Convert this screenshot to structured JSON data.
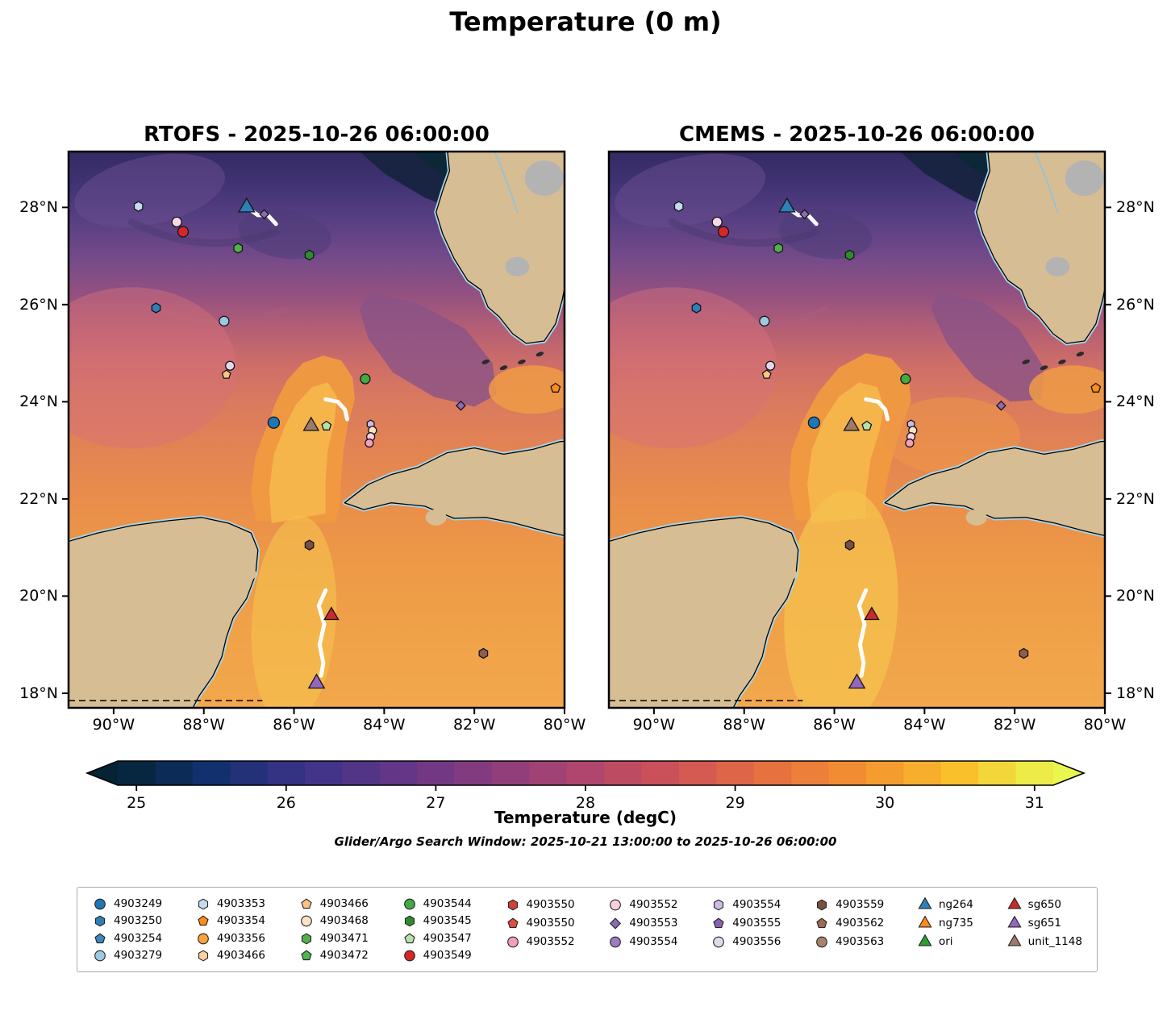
{
  "title": "Temperature (0 m)",
  "panels": [
    {
      "name": "RTOFS",
      "title": "RTOFS - 2025-10-26 06:00:00"
    },
    {
      "name": "CMEMS",
      "title": "CMEMS - 2025-10-26 06:00:00"
    }
  ],
  "axes": {
    "lon_ticks": [
      {
        "label": "90°W",
        "value": -90
      },
      {
        "label": "88°W",
        "value": -88
      },
      {
        "label": "86°W",
        "value": -86
      },
      {
        "label": "84°W",
        "value": -84
      },
      {
        "label": "82°W",
        "value": -82
      },
      {
        "label": "80°W",
        "value": -80
      }
    ],
    "lat_ticks": [
      {
        "label": "18°N",
        "value": 18
      },
      {
        "label": "20°N",
        "value": 20
      },
      {
        "label": "22°N",
        "value": 22
      },
      {
        "label": "24°N",
        "value": 24
      },
      {
        "label": "26°N",
        "value": 26
      },
      {
        "label": "28°N",
        "value": 28
      }
    ]
  },
  "colorbar": {
    "label": "Temperature (degC)",
    "ticks": [
      25,
      26,
      27,
      28,
      29,
      30,
      31
    ],
    "vmin": 24.875,
    "vmax": 31.125,
    "band_step": 0.25,
    "colormap_stops": [
      [
        0.0,
        "#042333"
      ],
      [
        0.1,
        "#12306d"
      ],
      [
        0.2,
        "#3b3389"
      ],
      [
        0.3,
        "#633688"
      ],
      [
        0.4,
        "#8b3c7e"
      ],
      [
        0.5,
        "#b0466d"
      ],
      [
        0.6,
        "#d05455"
      ],
      [
        0.7,
        "#e7713f"
      ],
      [
        0.8,
        "#f4932f"
      ],
      [
        0.9,
        "#f9c02c"
      ],
      [
        1.0,
        "#e9f64e"
      ]
    ]
  },
  "subtitle": "Glider/Argo Search Window: 2025-10-21 13:00:00 to 2025-10-26 06:00:00",
  "legend": {
    "column_sizes": [
      4,
      4,
      4,
      4,
      3,
      3,
      3,
      3,
      3,
      3
    ],
    "items": [
      {
        "label": "4903249",
        "shape": "circle",
        "color": "#1f77b4"
      },
      {
        "label": "4903250",
        "shape": "hexagon",
        "color": "#2f7fb8"
      },
      {
        "label": "4903254",
        "shape": "pentagon",
        "color": "#3d87be"
      },
      {
        "label": "4903279",
        "shape": "circle",
        "color": "#9ecae1"
      },
      {
        "label": "4903353",
        "shape": "hexagon",
        "color": "#c6dbef"
      },
      {
        "label": "4903354",
        "shape": "pentagon",
        "color": "#ff8c1a"
      },
      {
        "label": "4903356",
        "shape": "circle",
        "color": "#fda33a"
      },
      {
        "label": "4903466",
        "shape": "hexagon",
        "color": "#fdd0a2"
      },
      {
        "label": "4903466",
        "shape": "pentagon",
        "color": "#fdc486"
      },
      {
        "label": "4903468",
        "shape": "circle",
        "color": "#fde3c3"
      },
      {
        "label": "4903471",
        "shape": "hexagon",
        "color": "#54b04a"
      },
      {
        "label": "4903472",
        "shape": "pentagon",
        "color": "#4bb74c"
      },
      {
        "label": "4903544",
        "shape": "circle",
        "color": "#41ab41"
      },
      {
        "label": "4903545",
        "shape": "hexagon",
        "color": "#2e8b2e"
      },
      {
        "label": "4903547",
        "shape": "pentagon",
        "color": "#b5e2a8"
      },
      {
        "label": "4903549",
        "shape": "circle",
        "color": "#d62728"
      },
      {
        "label": "4903550",
        "shape": "hexagon",
        "color": "#d0413a"
      },
      {
        "label": "4903550",
        "shape": "pentagon",
        "color": "#e04c44"
      },
      {
        "label": "4903552",
        "shape": "circle",
        "color": "#f2a0bb"
      },
      {
        "label": "4903552",
        "shape": "circle",
        "color": "#f9d0e0"
      },
      {
        "label": "4903553",
        "shape": "diamond",
        "color": "#8c6bb1"
      },
      {
        "label": "4903554",
        "shape": "circle",
        "color": "#9e7cc1"
      },
      {
        "label": "4903554",
        "shape": "hexagon",
        "color": "#cdbbe3"
      },
      {
        "label": "4903555",
        "shape": "pentagon",
        "color": "#8860b0"
      },
      {
        "label": "4903556",
        "shape": "circle",
        "color": "#e2d9ee"
      },
      {
        "label": "4903559",
        "shape": "hexagon",
        "color": "#7a4f3f"
      },
      {
        "label": "4903562",
        "shape": "pentagon",
        "color": "#9c6b52"
      },
      {
        "label": "4903563",
        "shape": "circle",
        "color": "#a9816b"
      },
      {
        "label": "ng264",
        "shape": "triangle",
        "color": "#2f7fb8"
      },
      {
        "label": "ng735",
        "shape": "triangle",
        "color": "#ff8c1a"
      },
      {
        "label": "ori",
        "shape": "triangle",
        "color": "#2ca02c"
      },
      {
        "label": "sg650",
        "shape": "triangle",
        "color": "#c92a2a"
      },
      {
        "label": "sg651",
        "shape": "triangle",
        "color": "#9467bd"
      },
      {
        "label": "unit_1148",
        "shape": "triangle",
        "color": "#9c7b6a"
      }
    ]
  },
  "chart_data": {
    "type": "heatmap",
    "description": "Sea surface temperature (0 m) from RTOFS and CMEMS models over the Gulf of Mexico, with Argo float and glider observation positions and white glider tracks",
    "temperature_units": "degC",
    "temperature_ticks": [
      25,
      26,
      27,
      28,
      29,
      30,
      31
    ],
    "lon_range": [
      -91,
      -80
    ],
    "lat_range": [
      17.7,
      29.15
    ],
    "markers": [
      {
        "id": "4903353",
        "shape": "hexagon",
        "color": "#c6dbef",
        "lon": -89.45,
        "lat": 28.02,
        "size": 6
      },
      {
        "id": "ng264",
        "shape": "triangle",
        "color": "#2f7fb8",
        "lon": -87.05,
        "lat": 28.0,
        "size": 9
      },
      {
        "id": "4903553",
        "shape": "diamond",
        "color": "#8c6bb1",
        "lon": -86.66,
        "lat": 27.86,
        "size": 5.5
      },
      {
        "id": "4903552",
        "shape": "circle",
        "color": "#f9d8e6",
        "lon": -88.6,
        "lat": 27.7,
        "size": 6
      },
      {
        "id": "4903549",
        "shape": "circle",
        "color": "#d62728",
        "lon": -88.46,
        "lat": 27.5,
        "size": 6.5
      },
      {
        "id": "4903471",
        "shape": "hexagon",
        "color": "#54b04a",
        "lon": -87.24,
        "lat": 27.16,
        "size": 6
      },
      {
        "id": "4903545",
        "shape": "hexagon",
        "color": "#2e8b2e",
        "lon": -85.66,
        "lat": 27.02,
        "size": 6
      },
      {
        "id": "4903250",
        "shape": "hexagon",
        "color": "#2f7fb8",
        "lon": -89.06,
        "lat": 25.93,
        "size": 6
      },
      {
        "id": "4903279",
        "shape": "circle",
        "color": "#9ecae1",
        "lon": -87.55,
        "lat": 25.66,
        "size": 6
      },
      {
        "id": "4903556",
        "shape": "circle",
        "color": "#e2d9ee",
        "lon": -87.42,
        "lat": 24.74,
        "size": 5.5
      },
      {
        "id": "4903466",
        "shape": "pentagon",
        "color": "#fdc486",
        "lon": -87.5,
        "lat": 24.56,
        "size": 5.5
      },
      {
        "id": "4903544",
        "shape": "circle",
        "color": "#41ab41",
        "lon": -84.42,
        "lat": 24.47,
        "size": 6
      },
      {
        "id": "4903354",
        "shape": "pentagon",
        "color": "#ff8c1a",
        "lon": -80.2,
        "lat": 24.28,
        "size": 6
      },
      {
        "id": "4903553",
        "shape": "diamond",
        "color": "#8c6bb1",
        "lon": -82.3,
        "lat": 23.92,
        "size": 5.5
      },
      {
        "id": "4903249",
        "shape": "circle",
        "color": "#1f77b4",
        "lon": -86.45,
        "lat": 23.57,
        "size": 7
      },
      {
        "id": "unit_1148",
        "shape": "triangle",
        "color": "#9c7b6a",
        "lon": -85.62,
        "lat": 23.5,
        "size": 8.5
      },
      {
        "id": "4903547",
        "shape": "pentagon",
        "color": "#b5e2a8",
        "lon": -85.28,
        "lat": 23.5,
        "size": 6
      },
      {
        "id": "4903554",
        "shape": "hexagon",
        "color": "#cdbbe3",
        "lon": -84.3,
        "lat": 23.54,
        "size": 5
      },
      {
        "id": "4903468",
        "shape": "circle",
        "color": "#fde3c3",
        "lon": -84.26,
        "lat": 23.41,
        "size": 5
      },
      {
        "id": "4903552",
        "shape": "circle",
        "color": "#f9d0e0",
        "lon": -84.3,
        "lat": 23.28,
        "size": 5
      },
      {
        "id": "4903552",
        "shape": "circle",
        "color": "#f2a0bb",
        "lon": -84.33,
        "lat": 23.15,
        "size": 5
      },
      {
        "id": "4903559",
        "shape": "hexagon",
        "color": "#7a4f3f",
        "lon": -85.66,
        "lat": 21.05,
        "size": 6
      },
      {
        "id": "sg650",
        "shape": "triangle",
        "color": "#c92a2a",
        "lon": -85.17,
        "lat": 19.6,
        "size": 8
      },
      {
        "id": "sg651",
        "shape": "triangle",
        "color": "#9467bd",
        "lon": -85.5,
        "lat": 18.2,
        "size": 9
      },
      {
        "id": "4903563",
        "shape": "hexagon",
        "color": "#8c5f4a",
        "lon": -81.8,
        "lat": 18.82,
        "size": 6
      }
    ],
    "tracks": [
      {
        "id": "ng264-track",
        "points": [
          [
            -87.0,
            27.97
          ],
          [
            -86.8,
            27.84
          ],
          [
            -86.58,
            27.84
          ],
          [
            -86.4,
            27.66
          ]
        ]
      },
      {
        "id": "mid-glider-track",
        "points": [
          [
            -85.3,
            24.05
          ],
          [
            -85.03,
            24.0
          ],
          [
            -84.87,
            23.84
          ],
          [
            -84.82,
            23.64
          ]
        ]
      },
      {
        "id": "south-glider-track",
        "points": [
          [
            -85.3,
            20.12
          ],
          [
            -85.45,
            19.8
          ],
          [
            -85.33,
            19.42
          ],
          [
            -85.43,
            19.0
          ],
          [
            -85.35,
            18.62
          ],
          [
            -85.4,
            18.36
          ]
        ]
      }
    ]
  }
}
